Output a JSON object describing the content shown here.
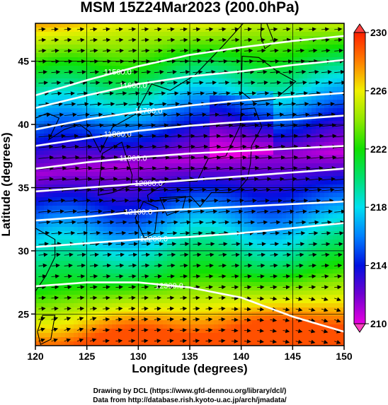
{
  "chart_data": {
    "type": "heatmap",
    "title": "MSM 15Z24Mar2023 (200.0hPa)",
    "xlabel": "Longitude (degrees)",
    "ylabel": "Latitude  (degrees)",
    "xlim": [
      120,
      150
    ],
    "ylim": [
      22.5,
      48
    ],
    "xticks": [
      120,
      125,
      130,
      135,
      140,
      145,
      150
    ],
    "yticks": [
      25,
      30,
      35,
      40,
      45
    ],
    "colorbar": {
      "min": 210,
      "max": 230,
      "ticks": [
        210,
        214,
        218,
        222,
        226,
        230
      ],
      "stops": [
        {
          "value": 210,
          "color": "#e800e0"
        },
        {
          "value": 212,
          "color": "#7000d0"
        },
        {
          "value": 214,
          "color": "#0010e0"
        },
        {
          "value": 216,
          "color": "#0080ff"
        },
        {
          "value": 218,
          "color": "#00e0f0"
        },
        {
          "value": 220,
          "color": "#00e070"
        },
        {
          "value": 222,
          "color": "#10e000"
        },
        {
          "value": 224,
          "color": "#90e800"
        },
        {
          "value": 226,
          "color": "#f0f000"
        },
        {
          "value": 228,
          "color": "#ff8000"
        },
        {
          "value": 230,
          "color": "#ff2000"
        }
      ]
    },
    "contours": [
      {
        "label": "11500.0",
        "lon": [
          120,
          125,
          130,
          135,
          140,
          145,
          150
        ],
        "lat": [
          42.3,
          43.5,
          44.6,
          45.5,
          46.1,
          46.6,
          47.0
        ]
      },
      {
        "label": "11600.0",
        "lon": [
          120,
          125,
          130,
          135,
          140,
          145,
          150
        ],
        "lat": [
          41.3,
          42.3,
          43.2,
          43.8,
          44.2,
          44.7,
          45.1
        ]
      },
      {
        "label": "11700.0",
        "lon": [
          120,
          125,
          130,
          135,
          140,
          145,
          150
        ],
        "lat": [
          39.6,
          40.4,
          41.0,
          41.5,
          41.9,
          42.2,
          42.5
        ]
      },
      {
        "label": "11800.0",
        "lon": [
          120,
          125,
          130,
          135,
          140,
          145,
          150
        ],
        "lat": [
          38.3,
          38.9,
          39.5,
          39.9,
          40.2,
          40.4,
          40.7
        ]
      },
      {
        "label": "11900.0",
        "lon": [
          120,
          125,
          130,
          135,
          140,
          145,
          150
        ],
        "lat": [
          36.5,
          37.0,
          37.4,
          37.7,
          37.9,
          38.1,
          38.3
        ]
      },
      {
        "label": "12000.0",
        "lon": [
          120,
          125,
          130,
          135,
          140,
          145,
          150
        ],
        "lat": [
          34.7,
          35.0,
          35.3,
          35.6,
          35.9,
          36.2,
          36.5
        ]
      },
      {
        "label": "12100.0",
        "lon": [
          120,
          125,
          130,
          135,
          140,
          145,
          150
        ],
        "lat": [
          32.4,
          32.7,
          33.1,
          33.3,
          33.5,
          33.7,
          33.9
        ]
      },
      {
        "label": "12200.0",
        "lon": [
          120,
          125,
          130,
          135,
          140,
          145,
          150
        ],
        "lat": [
          30.3,
          30.6,
          30.9,
          31.1,
          31.4,
          31.8,
          32.2
        ]
      },
      {
        "label": "12300.0",
        "lon": [
          120,
          125,
          130,
          135,
          140,
          145,
          150
        ],
        "lat": [
          27.2,
          27.5,
          27.5,
          27.1,
          26.3,
          24.8,
          23.6
        ]
      }
    ],
    "wind": "vectors (mostly westerly)"
  },
  "credits": {
    "line1": "Drawing by DCL (https://www.gfd-dennou.org/library/dcl/)",
    "line2": "Data from http://database.rish.kyoto-u.ac.jp/arch/jmadata/"
  }
}
